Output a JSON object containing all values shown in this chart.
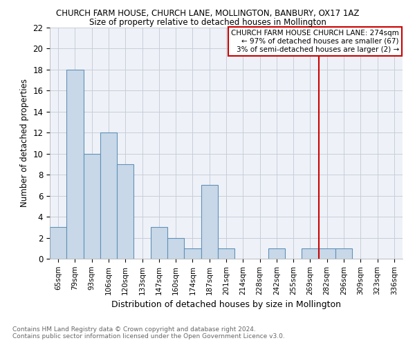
{
  "title": "CHURCH FARM HOUSE, CHURCH LANE, MOLLINGTON, BANBURY, OX17 1AZ",
  "subtitle": "Size of property relative to detached houses in Mollington",
  "xlabel": "Distribution of detached houses by size in Mollington",
  "ylabel": "Number of detached properties",
  "categories": [
    "65sqm",
    "79sqm",
    "93sqm",
    "106sqm",
    "120sqm",
    "133sqm",
    "147sqm",
    "160sqm",
    "174sqm",
    "187sqm",
    "201sqm",
    "214sqm",
    "228sqm",
    "242sqm",
    "255sqm",
    "269sqm",
    "282sqm",
    "296sqm",
    "309sqm",
    "323sqm",
    "336sqm"
  ],
  "values": [
    3,
    18,
    10,
    12,
    9,
    0,
    3,
    2,
    1,
    7,
    1,
    0,
    0,
    1,
    0,
    1,
    1,
    1,
    0,
    0,
    0
  ],
  "bar_color": "#c8d8e8",
  "bar_edgecolor": "#6090b8",
  "grid_color": "#c8ccd8",
  "background_color": "#eef2f8",
  "vline_x_index": 15.5,
  "vline_color": "#cc0000",
  "legend_title": "CHURCH FARM HOUSE CHURCH LANE: 274sqm",
  "legend_line1": "← 97% of detached houses are smaller (67)",
  "legend_line2": "3% of semi-detached houses are larger (2) →",
  "footer_line1": "Contains HM Land Registry data © Crown copyright and database right 2024.",
  "footer_line2": "Contains public sector information licensed under the Open Government Licence v3.0.",
  "ylim": [
    0,
    22
  ],
  "yticks": [
    0,
    2,
    4,
    6,
    8,
    10,
    12,
    14,
    16,
    18,
    20,
    22
  ]
}
